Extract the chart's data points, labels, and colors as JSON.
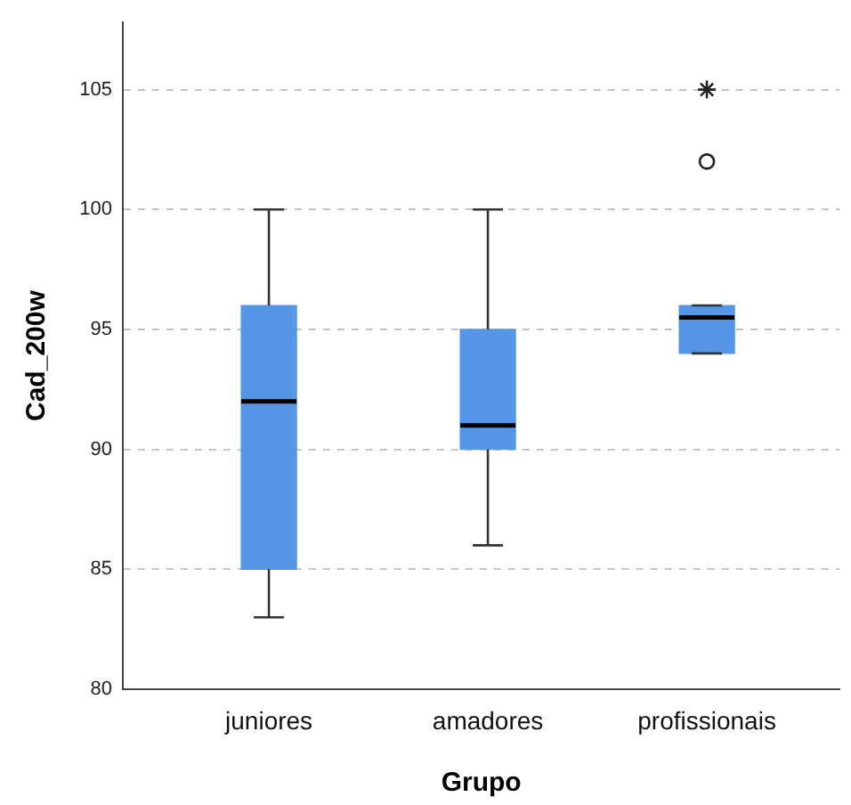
{
  "chart_data": {
    "type": "box",
    "xlabel": "Grupo",
    "ylabel": "Cad_200w",
    "categories": [
      "juniores",
      "amadores",
      "profissionais"
    ],
    "boxes": [
      {
        "low": 83,
        "q1": 85,
        "median": 92,
        "q3": 96,
        "high": 100
      },
      {
        "low": 86,
        "q1": 90,
        "median": 91,
        "q3": 95,
        "high": 100
      },
      {
        "low": 94,
        "q1": 94,
        "median": 95.5,
        "q3": 96,
        "high": 96,
        "outliers": [
          102,
          105
        ]
      }
    ],
    "color": "#5596e6",
    "ylim": [
      80,
      107.8
    ],
    "yticks": [
      80,
      85,
      90,
      95,
      100,
      105
    ],
    "grid": "y"
  }
}
